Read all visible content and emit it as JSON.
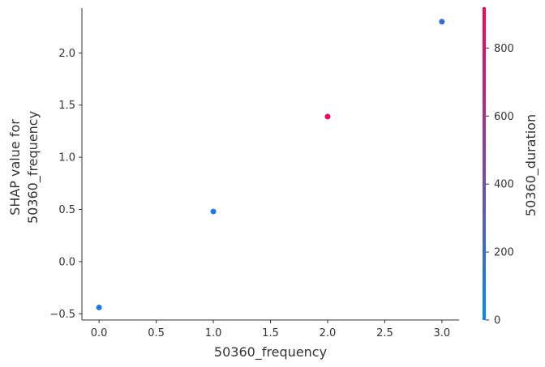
{
  "chart_data": {
    "type": "scatter",
    "title": "",
    "xlabel": "50360_frequency",
    "ylabel_lines": [
      "SHAP value for",
      "50360_frequency"
    ],
    "xlim": [
      -0.15,
      3.15
    ],
    "ylim": [
      -0.56,
      2.43
    ],
    "x_ticks": [
      0.0,
      0.5,
      1.0,
      1.5,
      2.0,
      2.5,
      3.0
    ],
    "x_tick_labels": [
      "0.0",
      "0.5",
      "1.0",
      "1.5",
      "2.0",
      "2.5",
      "3.0"
    ],
    "y_ticks": [
      -0.5,
      0.0,
      0.5,
      1.0,
      1.5,
      2.0
    ],
    "y_tick_labels": [
      "−0.5",
      "0.0",
      "0.5",
      "1.0",
      "1.5",
      "2.0"
    ],
    "grid": false,
    "points": [
      {
        "x": 0.0,
        "y": -0.44,
        "color_value": 100
      },
      {
        "x": 1.0,
        "y": 0.48,
        "color_value": 100
      },
      {
        "x": 2.0,
        "y": 1.39,
        "color_value": 900
      },
      {
        "x": 3.0,
        "y": 2.3,
        "color_value": 200
      }
    ],
    "colorbar": {
      "label": "50360_duration",
      "range": [
        0,
        920
      ],
      "ticks": [
        0,
        200,
        400,
        600,
        800
      ],
      "tick_labels": [
        "0",
        "200",
        "400",
        "600",
        "800"
      ],
      "colors": [
        "#008afb",
        "#ff0052"
      ]
    },
    "axis_color": "#333333"
  }
}
